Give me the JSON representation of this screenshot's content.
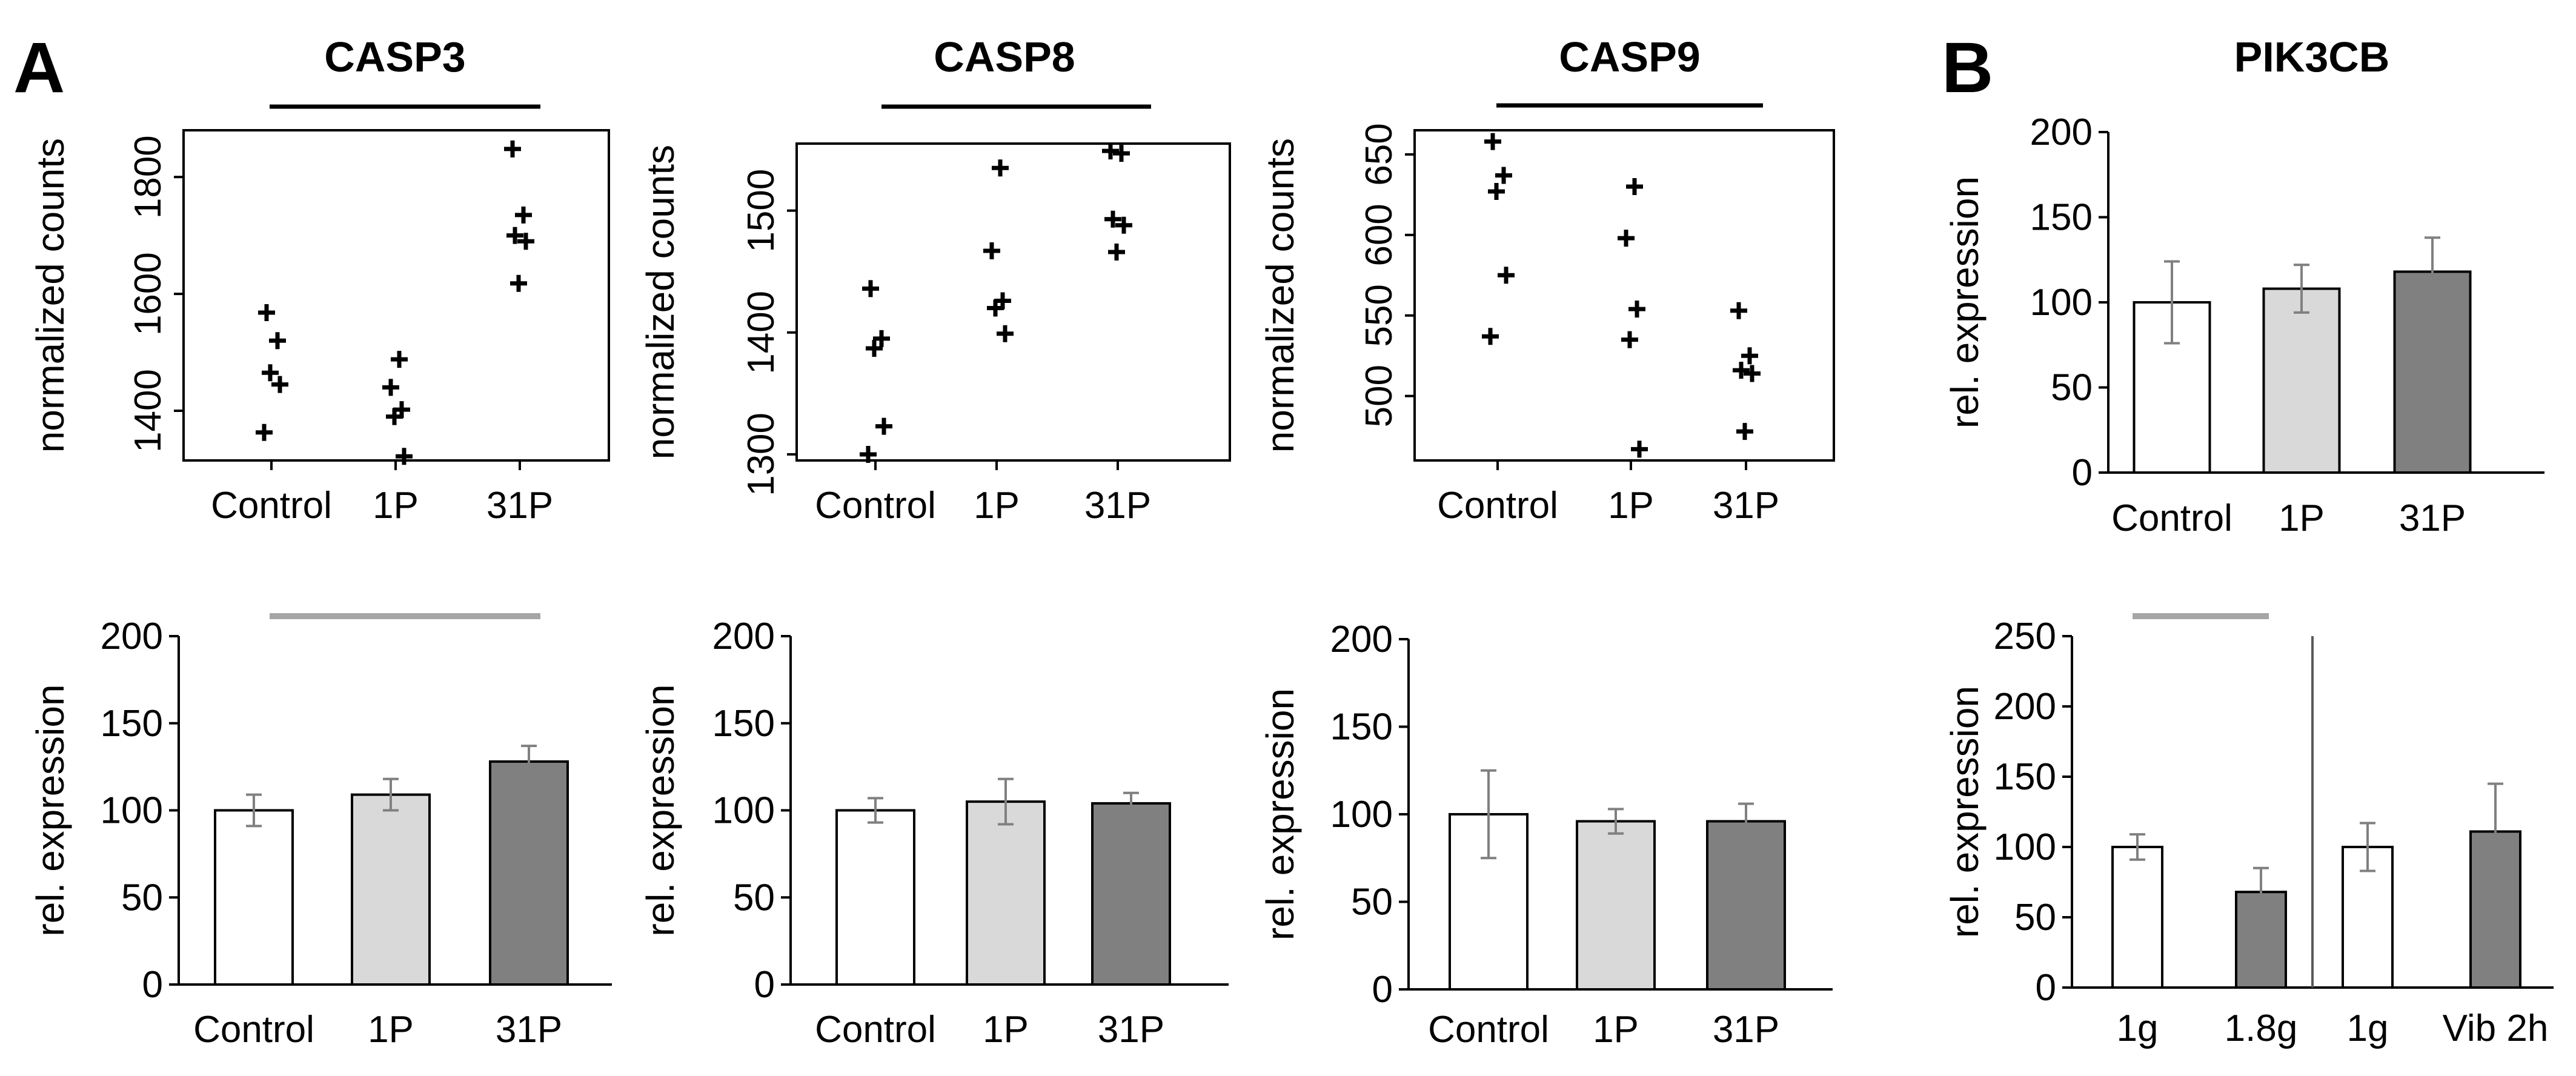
{
  "figure": {
    "panel_a_label": "A",
    "panel_b_label": "B"
  },
  "colors": {
    "control_bar": "#ffffff",
    "p1_bar": "#d9d9d9",
    "p31_bar": "#808080",
    "axis": "#000000",
    "error_bar": "#808080",
    "bracket_black": "#000000",
    "bracket_gray": "#a6a6a6"
  },
  "chart_data": [
    {
      "id": "casp3_scatter",
      "type": "scatter",
      "title": "CASP3",
      "xlabel": "",
      "ylabel": "normalized counts",
      "categories": [
        "Control",
        "1P",
        "31P"
      ],
      "ylim": [
        1315,
        1880
      ],
      "yticks": [
        1400,
        1600,
        1800
      ],
      "points": [
        [
          0,
          1568
        ],
        [
          0,
          1520
        ],
        [
          0,
          1465
        ],
        [
          0,
          1445
        ],
        [
          0,
          1363
        ],
        [
          1,
          1488
        ],
        [
          1,
          1440
        ],
        [
          1,
          1402
        ],
        [
          1,
          1390
        ],
        [
          1,
          1322
        ],
        [
          2,
          1848
        ],
        [
          2,
          1735
        ],
        [
          2,
          1700
        ],
        [
          2,
          1690
        ],
        [
          2,
          1618
        ]
      ]
    },
    {
      "id": "casp8_scatter",
      "type": "scatter",
      "title": "CASP8",
      "xlabel": "",
      "ylabel": "normalized counts",
      "categories": [
        "Control",
        "1P",
        "31P"
      ],
      "ylim": [
        1295,
        1555
      ],
      "yticks": [
        1300,
        1400,
        1500
      ],
      "points": [
        [
          0,
          1436
        ],
        [
          0,
          1395
        ],
        [
          0,
          1387
        ],
        [
          0,
          1323
        ],
        [
          0,
          1300
        ],
        [
          1,
          1535
        ],
        [
          1,
          1467
        ],
        [
          1,
          1426
        ],
        [
          1,
          1420
        ],
        [
          1,
          1399
        ],
        [
          2,
          1549
        ],
        [
          2,
          1547
        ],
        [
          2,
          1493
        ],
        [
          2,
          1488
        ],
        [
          2,
          1466
        ]
      ]
    },
    {
      "id": "casp9_scatter",
      "type": "scatter",
      "title": "CASP9",
      "xlabel": "",
      "ylabel": "normalized counts",
      "categories": [
        "Control",
        "1P",
        "31P"
      ],
      "ylim": [
        460,
        665
      ],
      "yticks": [
        500,
        550,
        600,
        650
      ],
      "points": [
        [
          0,
          658
        ],
        [
          0,
          637
        ],
        [
          0,
          627
        ],
        [
          0,
          575
        ],
        [
          0,
          537
        ],
        [
          1,
          630
        ],
        [
          1,
          598
        ],
        [
          1,
          554
        ],
        [
          1,
          535
        ],
        [
          1,
          467
        ],
        [
          2,
          553
        ],
        [
          2,
          525
        ],
        [
          2,
          516
        ],
        [
          2,
          514
        ],
        [
          2,
          478
        ]
      ]
    },
    {
      "id": "casp3_bar",
      "type": "bar",
      "title": "",
      "xlabel": "",
      "ylabel": "rel. expression",
      "categories": [
        "Control",
        "1P",
        "31P"
      ],
      "values": [
        100,
        109,
        128
      ],
      "errors": [
        9,
        9,
        9
      ],
      "ylim": [
        0,
        200
      ],
      "yticks": [
        0,
        50,
        100,
        150,
        200
      ]
    },
    {
      "id": "casp8_bar",
      "type": "bar",
      "title": "",
      "xlabel": "",
      "ylabel": "rel. expression",
      "categories": [
        "Control",
        "1P",
        "31P"
      ],
      "values": [
        100,
        105,
        104
      ],
      "errors": [
        7,
        13,
        6
      ],
      "ylim": [
        0,
        200
      ],
      "yticks": [
        0,
        50,
        100,
        150,
        200
      ]
    },
    {
      "id": "casp9_bar",
      "type": "bar",
      "title": "",
      "xlabel": "",
      "ylabel": "rel. expression",
      "categories": [
        "Control",
        "1P",
        "31P"
      ],
      "values": [
        100,
        96,
        96
      ],
      "errors": [
        25,
        7,
        10
      ],
      "ylim": [
        0,
        200
      ],
      "yticks": [
        0,
        50,
        100,
        150,
        200
      ]
    },
    {
      "id": "pik3cb_bar",
      "type": "bar",
      "title": "PIK3CB",
      "xlabel": "",
      "ylabel": "rel. expression",
      "categories": [
        "Control",
        "1P",
        "31P"
      ],
      "values": [
        100,
        108,
        118
      ],
      "errors": [
        24,
        14,
        20
      ],
      "ylim": [
        0,
        200
      ],
      "yticks": [
        0,
        50,
        100,
        150,
        200
      ]
    },
    {
      "id": "pik3cb_conditions_bar",
      "type": "bar",
      "title": "",
      "xlabel": "",
      "ylabel": "rel. expression",
      "categories": [
        "1g",
        "1.8g",
        "1g",
        "Vib 2h"
      ],
      "values": [
        100,
        68,
        100,
        111
      ],
      "errors": [
        9,
        17,
        17,
        34
      ],
      "ylim": [
        0,
        250
      ],
      "yticks": [
        0,
        50,
        100,
        150,
        200,
        250
      ]
    }
  ]
}
